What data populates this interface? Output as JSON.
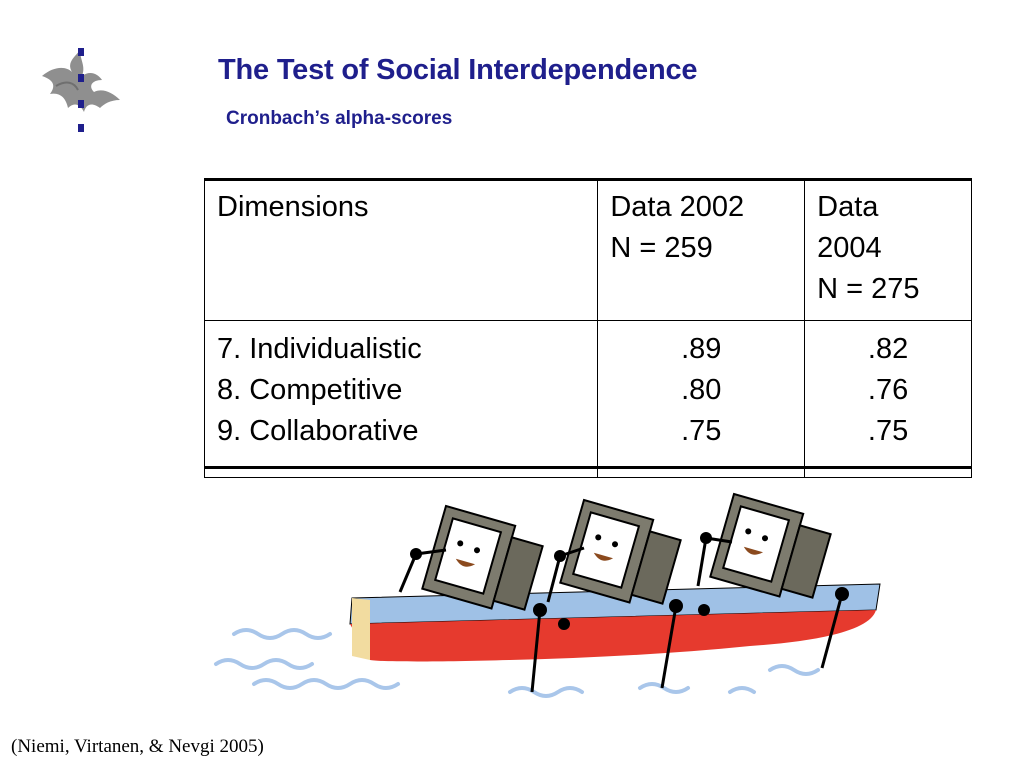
{
  "slide": {
    "title": "The Test of Social Interdependence",
    "subtitle": "Cronbach’s alpha-scores",
    "citation": "(Niemi, Virtanen, & Nevgi 2005)"
  },
  "table": {
    "header": {
      "col1": [
        "Dimensions"
      ],
      "col2": [
        "Data 2002",
        "N = 259"
      ],
      "col3": [
        "Data",
        "2004",
        "N = 275"
      ]
    },
    "rows": {
      "dimensions": [
        "7. Individualistic",
        "8. Competitive",
        "9. Collaborative"
      ],
      "data_2002": [
        ".89",
        ".80",
        ".75"
      ],
      "data_2004": [
        ".82",
        ".76",
        ".75"
      ]
    }
  },
  "colors": {
    "title": "#1f1f8c",
    "boat_hull": "#e63a2e",
    "boat_deck": "#9fc1e6",
    "water": "#a9c6ea",
    "monitor": "#7d7b6e"
  },
  "icons": {
    "logo": "university-flame-logo",
    "illustration": "monitors-rowing-boat"
  }
}
